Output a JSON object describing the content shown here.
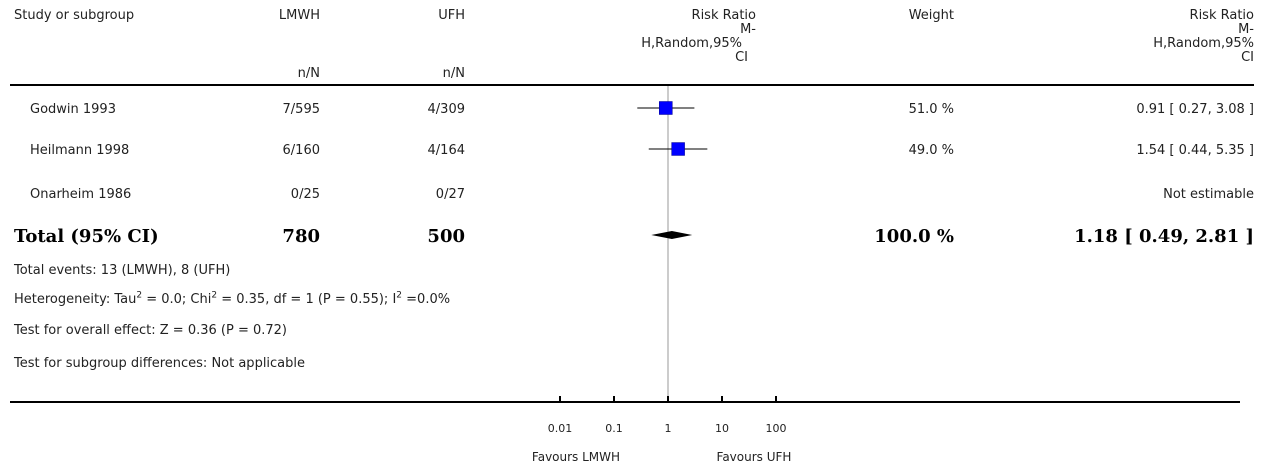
{
  "header": {
    "study_label": "Study or subgroup",
    "group1": "LMWH",
    "group2": "UFH",
    "effect_lines": [
      "Risk Ratio",
      "M-",
      "H,Random,95%",
      "CI"
    ],
    "weight": "Weight",
    "effect2_lines": [
      "Risk Ratio",
      "M-",
      "H,Random,95%",
      "CI"
    ],
    "group1_sub": "n/N",
    "group2_sub": "n/N"
  },
  "rows": [
    {
      "study": "Godwin 1993",
      "lmwh": "7/595",
      "ufh": "4/309",
      "weight": "51.0 %",
      "ci_text": "0.91 [ 0.27, 3.08 ]"
    },
    {
      "study": "Heilmann 1998",
      "lmwh": "6/160",
      "ufh": "4/164",
      "weight": "49.0 %",
      "ci_text": "1.54 [ 0.44, 5.35 ]"
    },
    {
      "study": "Onarheim 1986",
      "lmwh": "0/25",
      "ufh": "0/27",
      "weight": "",
      "ci_text": "Not estimable"
    }
  ],
  "total": {
    "label": "Total (95% CI)",
    "lmwh": "780",
    "ufh": "500",
    "weight": "100.0 %",
    "ci_text": "1.18 [ 0.49, 2.81 ]"
  },
  "footnotes": {
    "events": "Total events: 13 (LMWH), 8 (UFH)",
    "het_a": "Heterogeneity: Tau",
    "het_b": " = 0.0; Chi",
    "het_c": " = 0.35, df = 1 (P = 0.55); I",
    "het_d": " =0.0%",
    "sup2": "2",
    "overall": "Test for overall effect: Z = 0.36 (P = 0.72)",
    "subgroup": "Test for subgroup differences: Not applicable"
  },
  "axis": {
    "favours_left": "Favours LMWH",
    "favours_right": "Favours UFH"
  },
  "colors": {
    "marker": "#0000ff"
  },
  "chart_data": {
    "type": "forest",
    "scale": "log",
    "xlim": [
      0.01,
      100
    ],
    "ticks": [
      0.01,
      0.1,
      1,
      10,
      100
    ],
    "tick_labels": [
      "0.01",
      "0.1",
      "1",
      "10",
      "100"
    ],
    "studies": [
      {
        "name": "Godwin 1993",
        "rr": 0.91,
        "lo": 0.27,
        "hi": 3.08,
        "weight": 51.0
      },
      {
        "name": "Heilmann 1998",
        "rr": 1.54,
        "lo": 0.44,
        "hi": 5.35,
        "weight": 49.0
      },
      {
        "name": "Onarheim 1986",
        "rr": null,
        "lo": null,
        "hi": null,
        "weight": null
      }
    ],
    "pooled": {
      "rr": 1.18,
      "lo": 0.49,
      "hi": 2.81
    }
  }
}
